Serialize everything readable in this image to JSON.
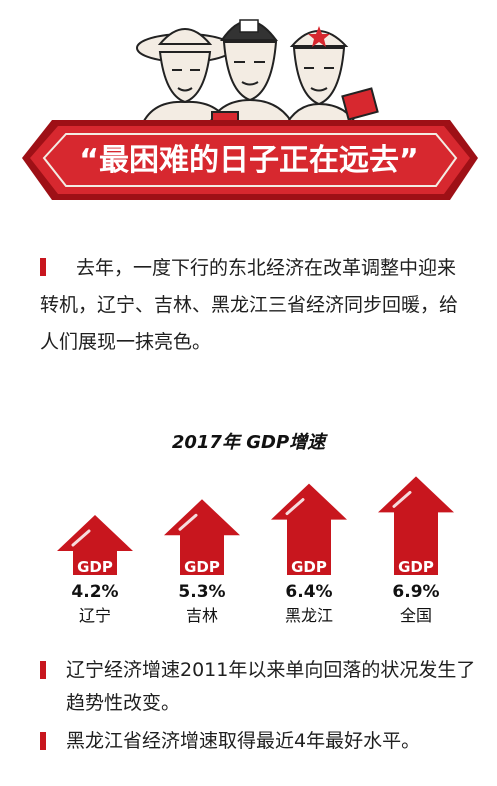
{
  "header": {
    "title": "“最困难的日子正在远去”",
    "colors": {
      "red": "#d7282f",
      "dark_red": "#9e1016",
      "cream": "#f3ece3"
    }
  },
  "intro": {
    "text": "去年，一度下行的东北经济在改革调整中迎来转机，辽宁、吉林、黑龙江三省经济同步回暖，给人们展现一抹亮色。"
  },
  "chart_data": {
    "type": "bar",
    "title": "2017年 GDP增速",
    "categories": [
      "辽宁",
      "吉林",
      "黑龙江",
      "全国"
    ],
    "values": [
      4.2,
      5.3,
      6.4,
      6.9
    ],
    "value_labels": [
      "4.2%",
      "5.3%",
      "6.4%",
      "6.9%"
    ],
    "bar_text": "GDP",
    "unit": "%",
    "ylim": [
      0,
      7
    ],
    "legend": "none",
    "grid": false,
    "colors": {
      "bar": "#c8161e",
      "bar_dark": "#a60f15"
    }
  },
  "notes": [
    "辽宁经济增速2011年以来单向回落的状况发生了趋势性改变。",
    "黑龙江省经济增速取得最近4年最好水平。"
  ]
}
